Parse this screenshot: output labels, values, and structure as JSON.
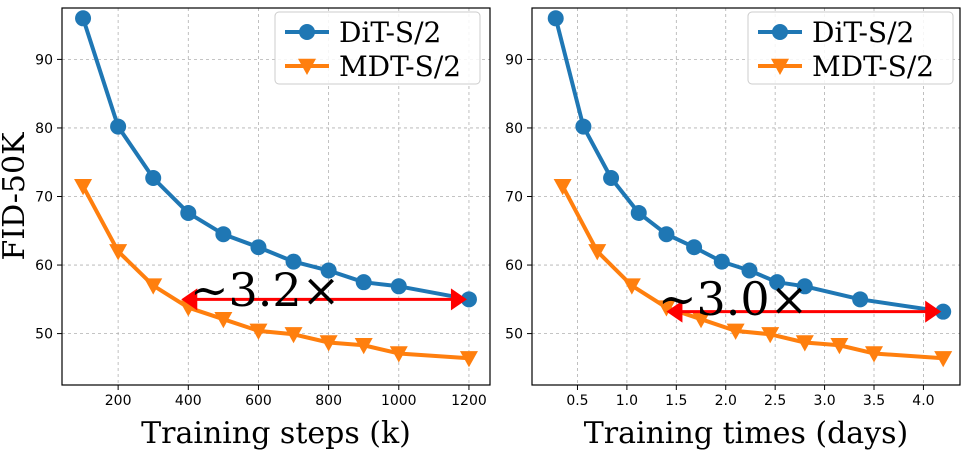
{
  "chart_data": [
    {
      "type": "line",
      "xlabel": "Training steps (k)",
      "ylabel": "FID-50K",
      "xlim": [
        40,
        1260
      ],
      "ylim": [
        42.5,
        97.5
      ],
      "xticks": [
        200,
        400,
        600,
        800,
        1000,
        1200
      ],
      "xtick_labels": [
        "200",
        "400",
        "600",
        "800",
        "1000",
        "1200"
      ],
      "yticks": [
        50,
        60,
        70,
        80,
        90
      ],
      "ytick_labels": [
        "50",
        "60",
        "70",
        "80",
        "90"
      ],
      "grid": true,
      "legend": "top-right",
      "series": [
        {
          "name": "DiT-S/2",
          "color": "#1f77b4",
          "marker": "circle",
          "x": [
            100,
            200,
            300,
            400,
            500,
            600,
            700,
            800,
            900,
            1000,
            1200
          ],
          "y": [
            96.0,
            80.2,
            72.7,
            67.6,
            64.5,
            62.6,
            60.5,
            59.2,
            57.5,
            56.9,
            55.0
          ]
        },
        {
          "name": "MDT-S/2",
          "color": "#ff7f0e",
          "marker": "triangle-down",
          "x": [
            100,
            200,
            300,
            400,
            500,
            600,
            700,
            800,
            900,
            1000,
            1200
          ],
          "y": [
            71.5,
            62.0,
            57.0,
            53.8,
            52.1,
            50.4,
            49.9,
            48.7,
            48.3,
            47.1,
            46.4
          ]
        }
      ],
      "annotation": {
        "text": "∼3.2×",
        "color": "#ff0000",
        "from": [
          1200,
          55.0
        ],
        "to": [
          380,
          55.0
        ]
      }
    },
    {
      "type": "line",
      "xlabel": "Training times (days)",
      "ylabel": "",
      "xlim": [
        0.04,
        4.37
      ],
      "ylim": [
        42.5,
        97.5
      ],
      "xticks": [
        0.5,
        1.0,
        1.5,
        2.0,
        2.5,
        3.0,
        3.5,
        4.0
      ],
      "xtick_labels": [
        "0.5",
        "1.0",
        "1.5",
        "2.0",
        "2.5",
        "3.0",
        "3.5",
        "4.0"
      ],
      "yticks": [
        50,
        60,
        70,
        80,
        90
      ],
      "ytick_labels": [
        "50",
        "60",
        "70",
        "80",
        "90"
      ],
      "grid": true,
      "legend": "top-right",
      "series": [
        {
          "name": "DiT-S/2",
          "color": "#1f77b4",
          "marker": "circle",
          "x": [
            0.28,
            0.56,
            0.84,
            1.12,
            1.4,
            1.68,
            1.96,
            2.24,
            2.52,
            2.8,
            3.36,
            4.2
          ],
          "y": [
            96.0,
            80.2,
            72.7,
            67.6,
            64.5,
            62.6,
            60.5,
            59.2,
            57.5,
            56.9,
            55.0,
            53.2
          ]
        },
        {
          "name": "MDT-S/2",
          "color": "#ff7f0e",
          "marker": "triangle-down",
          "x": [
            0.35,
            0.7,
            1.05,
            1.4,
            1.75,
            2.1,
            2.45,
            2.8,
            3.15,
            3.5,
            4.2
          ],
          "y": [
            71.5,
            62.0,
            57.0,
            53.8,
            52.1,
            50.4,
            49.9,
            48.7,
            48.3,
            47.1,
            46.4
          ]
        }
      ],
      "annotation": {
        "text": "∼3.0×",
        "color": "#ff0000",
        "from": [
          4.2,
          53.2
        ],
        "to": [
          1.4,
          53.2
        ]
      }
    }
  ]
}
